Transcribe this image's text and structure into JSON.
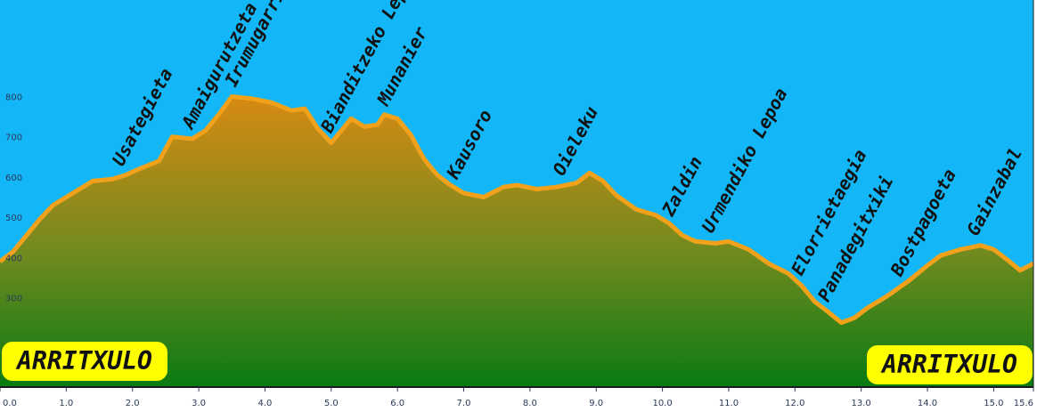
{
  "colors": {
    "sky": "#13b6f6",
    "profile_line": "#f2a21a",
    "fill_top": "#d78a12",
    "fill_bottom": "#0a7a12",
    "badge_bg": "#ffff00",
    "axis": "#2b3a5a"
  },
  "badges": {
    "start": "ARRITXULO",
    "end": "ARRITXULO"
  },
  "chart_data": {
    "type": "area",
    "x_ticks": [
      "0.0",
      "1.0",
      "2.0",
      "3.0",
      "4.0",
      "5.0",
      "6.0",
      "7.0",
      "8.0",
      "9.0",
      "10.0",
      "11.0",
      "12.0",
      "13.0",
      "14.0",
      "15.0",
      "15.6"
    ],
    "y_ticks": [
      "300",
      "400",
      "500",
      "600",
      "700",
      "800"
    ],
    "xlim": [
      0,
      15.6
    ],
    "ylim": [
      80,
      1040
    ],
    "grid": false,
    "legend": "none",
    "profile": [
      [
        0.0,
        390
      ],
      [
        0.2,
        415
      ],
      [
        0.4,
        455
      ],
      [
        0.6,
        495
      ],
      [
        0.8,
        530
      ],
      [
        1.0,
        550
      ],
      [
        1.2,
        570
      ],
      [
        1.4,
        590
      ],
      [
        1.7,
        595
      ],
      [
        1.9,
        605
      ],
      [
        2.1,
        620
      ],
      [
        2.4,
        640
      ],
      [
        2.6,
        700
      ],
      [
        2.9,
        695
      ],
      [
        3.1,
        715
      ],
      [
        3.3,
        755
      ],
      [
        3.5,
        800
      ],
      [
        3.8,
        795
      ],
      [
        4.1,
        785
      ],
      [
        4.4,
        765
      ],
      [
        4.6,
        770
      ],
      [
        4.8,
        720
      ],
      [
        5.0,
        685
      ],
      [
        5.2,
        725
      ],
      [
        5.3,
        745
      ],
      [
        5.5,
        725
      ],
      [
        5.7,
        730
      ],
      [
        5.8,
        755
      ],
      [
        6.0,
        745
      ],
      [
        6.2,
        705
      ],
      [
        6.4,
        645
      ],
      [
        6.6,
        605
      ],
      [
        6.8,
        580
      ],
      [
        7.0,
        560
      ],
      [
        7.3,
        550
      ],
      [
        7.6,
        575
      ],
      [
        7.8,
        580
      ],
      [
        8.1,
        570
      ],
      [
        8.4,
        575
      ],
      [
        8.7,
        585
      ],
      [
        8.9,
        610
      ],
      [
        9.1,
        590
      ],
      [
        9.3,
        555
      ],
      [
        9.6,
        520
      ],
      [
        9.9,
        505
      ],
      [
        10.1,
        485
      ],
      [
        10.3,
        455
      ],
      [
        10.5,
        440
      ],
      [
        10.8,
        435
      ],
      [
        11.0,
        440
      ],
      [
        11.3,
        420
      ],
      [
        11.6,
        385
      ],
      [
        11.9,
        360
      ],
      [
        12.1,
        330
      ],
      [
        12.3,
        290
      ],
      [
        12.5,
        265
      ],
      [
        12.7,
        238
      ],
      [
        12.9,
        250
      ],
      [
        13.1,
        275
      ],
      [
        13.4,
        305
      ],
      [
        13.7,
        340
      ],
      [
        14.0,
        380
      ],
      [
        14.2,
        405
      ],
      [
        14.5,
        420
      ],
      [
        14.8,
        430
      ],
      [
        15.0,
        420
      ],
      [
        15.2,
        395
      ],
      [
        15.4,
        368
      ],
      [
        15.6,
        385
      ]
    ],
    "peaks": [
      {
        "name": "Usategieta",
        "km": 1.85
      },
      {
        "name": "Amaigurutzeta",
        "km": 2.9
      },
      {
        "name": "Irumugarrieta",
        "km": 3.55
      },
      {
        "name": "Bianditzeko Lepoa",
        "km": 5.0
      },
      {
        "name": "Munanier",
        "km": 5.85
      },
      {
        "name": "Kausoro",
        "km": 6.9
      },
      {
        "name": "Oieleku",
        "km": 8.5
      },
      {
        "name": "Zaldin",
        "km": 10.15
      },
      {
        "name": "Urmendiko Lepoa",
        "km": 10.75
      },
      {
        "name": "Elorrietaegia",
        "km": 12.1
      },
      {
        "name": "Panadegitxiki",
        "km": 12.5
      },
      {
        "name": "Bostpagoeta",
        "km": 13.6
      },
      {
        "name": "Gainzabal",
        "km": 14.75
      }
    ]
  }
}
